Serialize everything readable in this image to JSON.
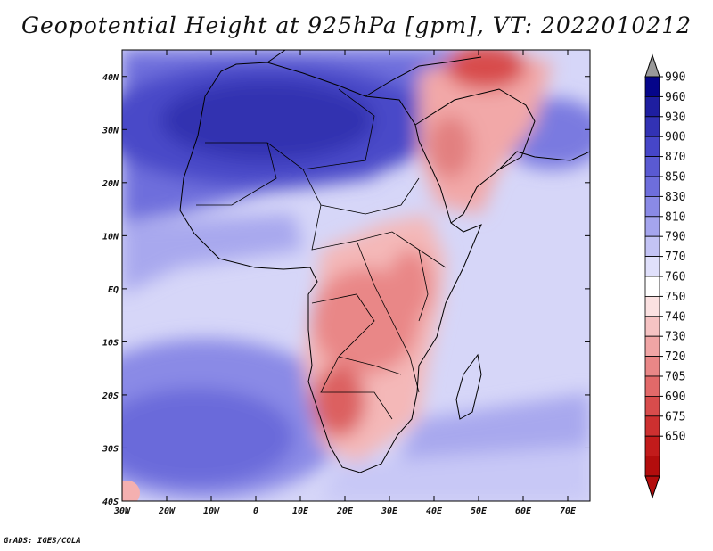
{
  "title": "Geopotential Height at 925hPa [gpm], VT: 2022010212",
  "footer": "GrADS: IGES/COLA",
  "map": {
    "lon_range": [
      -30,
      75
    ],
    "lat_range": [
      -40,
      45
    ],
    "x_ticks": [
      "30W",
      "20W",
      "10W",
      "0",
      "10E",
      "20E",
      "30E",
      "40E",
      "50E",
      "60E",
      "70E"
    ],
    "y_ticks": [
      "40N",
      "30N",
      "20N",
      "10N",
      "EQ",
      "10S",
      "20S",
      "30S",
      "40S"
    ]
  },
  "colorbar": {
    "levels": [
      "990",
      "960",
      "930",
      "900",
      "870",
      "850",
      "830",
      "810",
      "790",
      "770",
      "760",
      "750",
      "740",
      "730",
      "720",
      "705",
      "690",
      "675",
      "650"
    ],
    "colors": [
      "#05058a",
      "#1e1ea0",
      "#3232b4",
      "#4646c8",
      "#5a5ad2",
      "#6e6edc",
      "#8a8ae6",
      "#a5a5ee",
      "#c3c3f5",
      "#e0e0fb",
      "#ffffff",
      "#fbe1e1",
      "#f6c3c3",
      "#f0a5a5",
      "#e98787",
      "#e26969",
      "#d84c4c",
      "#cd3030",
      "#c21b1b",
      "#b30d0d"
    ],
    "top_arrow_color": "#9a9a9a"
  }
}
